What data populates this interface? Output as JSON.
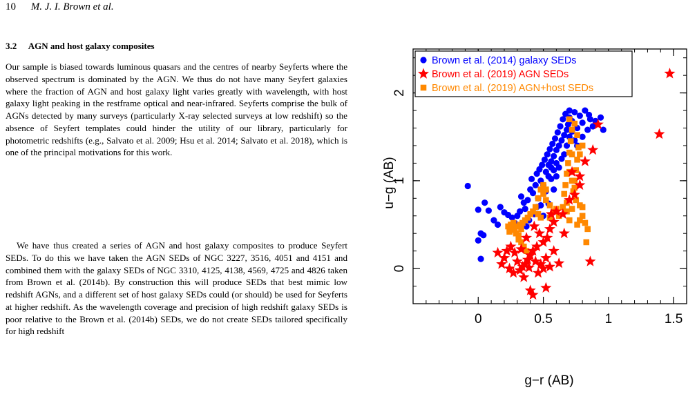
{
  "header": {
    "page_number": "10",
    "authors": "M. J. I. Brown et al."
  },
  "section": {
    "number": "3.2",
    "title": "AGN and host galaxy composites"
  },
  "paragraphs": [
    "Our sample is biased towards luminous quasars and the centres of nearby Seyferts where the observed spectrum is dominated by the AGN. We thus do not have many Seyfert galaxies where the fraction of AGN and host galaxy light varies greatly with wavelength, with host galaxy light peaking in the restframe optical and near-infrared. Seyferts comprise the bulk of AGNs detected by many surveys (particularly X-ray selected surveys at low redshift) so the absence of Seyfert templates could hinder the utility of our library, particularly for photometric redshifts (e.g., Salvato et al. 2009; Hsu et al. 2014; Salvato et al. 2018), which is one of the principal motivations for this work.",
    "We have thus created a series of AGN and host galaxy composites to produce Seyfert SEDs. To do this we have taken the AGN SEDs of NGC 3227, 3516, 4051 and 4151 and combined them with the galaxy SEDs of NGC 3310, 4125, 4138, 4569, 4725 and 4826 taken from Brown et al. (2014b). By construction this will produce SEDs that best mimic low redshift AGNs, and a different set of host galaxy SEDs could (or should) be used for Seyferts at higher redshift. As the wavelength coverage and precision of high redshift galaxy SEDs is poor relative to the Brown et al. (2014b) SEDs, we do not create SEDs tailored specifically for high redshift"
  ],
  "chart_data": {
    "type": "scatter",
    "xlabel": "g−r (AB)",
    "ylabel": "u−g (AB)",
    "xlim": [
      -0.5,
      1.6
    ],
    "ylim": [
      -0.4,
      2.5
    ],
    "xticks": [
      "0",
      "0.5",
      "1",
      "1.5"
    ],
    "yticks": [
      "0",
      "1",
      "2"
    ],
    "legend_position": "top-left",
    "series": [
      {
        "name": "Brown et al. (2014) galaxy SEDs",
        "marker": "circle",
        "color": "#0000ff",
        "points": [
          [
            -0.08,
            0.94
          ],
          [
            0.0,
            0.67
          ],
          [
            0.05,
            0.75
          ],
          [
            0.08,
            0.66
          ],
          [
            0.0,
            0.32
          ],
          [
            0.02,
            0.4
          ],
          [
            0.04,
            0.38
          ],
          [
            0.02,
            0.11
          ],
          [
            0.12,
            0.55
          ],
          [
            0.15,
            0.5
          ],
          [
            0.17,
            0.7
          ],
          [
            0.2,
            0.64
          ],
          [
            0.23,
            0.61
          ],
          [
            0.26,
            0.58
          ],
          [
            0.28,
            0.52
          ],
          [
            0.3,
            0.6
          ],
          [
            0.32,
            0.65
          ],
          [
            0.33,
            0.82
          ],
          [
            0.35,
            0.75
          ],
          [
            0.36,
            0.68
          ],
          [
            0.38,
            0.78
          ],
          [
            0.4,
            0.9
          ],
          [
            0.41,
            1.02
          ],
          [
            0.42,
            0.86
          ],
          [
            0.44,
            0.95
          ],
          [
            0.45,
            1.08
          ],
          [
            0.46,
            0.8
          ],
          [
            0.47,
            1.13
          ],
          [
            0.48,
            1.0
          ],
          [
            0.49,
            1.18
          ],
          [
            0.5,
            0.95
          ],
          [
            0.51,
            1.24
          ],
          [
            0.52,
            1.1
          ],
          [
            0.53,
            1.3
          ],
          [
            0.54,
            1.18
          ],
          [
            0.55,
            1.36
          ],
          [
            0.56,
            1.22
          ],
          [
            0.57,
            1.42
          ],
          [
            0.58,
            1.28
          ],
          [
            0.59,
            1.48
          ],
          [
            0.6,
            1.35
          ],
          [
            0.61,
            1.55
          ],
          [
            0.62,
            1.4
          ],
          [
            0.63,
            1.62
          ],
          [
            0.64,
            1.46
          ],
          [
            0.65,
            1.7
          ],
          [
            0.66,
            1.52
          ],
          [
            0.67,
            1.76
          ],
          [
            0.68,
            1.58
          ],
          [
            0.69,
            1.64
          ],
          [
            0.7,
            1.72
          ],
          [
            0.72,
            1.68
          ],
          [
            0.74,
            1.78
          ],
          [
            0.76,
            1.6
          ],
          [
            0.78,
            1.74
          ],
          [
            0.8,
            1.66
          ],
          [
            0.82,
            1.8
          ],
          [
            0.84,
            1.58
          ],
          [
            0.86,
            1.7
          ],
          [
            0.88,
            1.62
          ],
          [
            0.9,
            1.68
          ],
          [
            0.94,
            1.72
          ],
          [
            0.96,
            1.58
          ],
          [
            0.52,
            0.88
          ],
          [
            0.54,
            0.74
          ],
          [
            0.56,
            1.02
          ],
          [
            0.58,
            0.9
          ],
          [
            0.6,
            1.05
          ],
          [
            0.62,
            1.15
          ],
          [
            0.45,
            0.7
          ],
          [
            0.43,
            0.62
          ],
          [
            0.39,
            0.55
          ],
          [
            0.37,
            0.48
          ],
          [
            0.5,
            0.6
          ],
          [
            0.48,
            0.72
          ],
          [
            0.66,
            1.3
          ],
          [
            0.68,
            1.4
          ],
          [
            0.7,
            1.5
          ],
          [
            0.72,
            1.56
          ],
          [
            0.74,
            1.46
          ],
          [
            0.76,
            1.4
          ],
          [
            0.64,
            1.25
          ],
          [
            0.6,
            1.2
          ],
          [
            0.58,
            1.12
          ],
          [
            0.56,
            1.15
          ],
          [
            0.54,
            1.05
          ],
          [
            0.7,
            1.8
          ],
          [
            0.8,
            1.5
          ],
          [
            0.85,
            1.75
          ]
        ]
      },
      {
        "name": "Brown et al. (2019) AGN SEDs",
        "marker": "star",
        "color": "#ff0000",
        "points": [
          [
            1.47,
            2.22
          ],
          [
            1.39,
            1.53
          ],
          [
            0.92,
            1.64
          ],
          [
            0.88,
            1.35
          ],
          [
            0.82,
            1.22
          ],
          [
            0.78,
            1.05
          ],
          [
            0.74,
            0.84
          ],
          [
            0.7,
            0.78
          ],
          [
            0.78,
            0.95
          ],
          [
            0.72,
            1.1
          ],
          [
            0.86,
            0.08
          ],
          [
            0.65,
            0.62
          ],
          [
            0.6,
            0.65
          ],
          [
            0.58,
            0.53
          ],
          [
            0.55,
            0.45
          ],
          [
            0.53,
            0.35
          ],
          [
            0.5,
            0.3
          ],
          [
            0.47,
            0.4
          ],
          [
            0.45,
            0.25
          ],
          [
            0.42,
            0.2
          ],
          [
            0.4,
            0.15
          ],
          [
            0.38,
            0.1
          ],
          [
            0.36,
            0.05
          ],
          [
            0.34,
            0.02
          ],
          [
            0.32,
            -0.02
          ],
          [
            0.3,
            0.08
          ],
          [
            0.28,
            0.18
          ],
          [
            0.25,
            0.25
          ],
          [
            0.22,
            0.2
          ],
          [
            0.2,
            0.12
          ],
          [
            0.18,
            0.05
          ],
          [
            0.15,
            0.18
          ],
          [
            0.27,
            -0.05
          ],
          [
            0.35,
            -0.1
          ],
          [
            0.4,
            -0.25
          ],
          [
            0.42,
            -0.3
          ],
          [
            0.52,
            -0.22
          ],
          [
            0.46,
            -0.05
          ],
          [
            0.55,
            0.02
          ],
          [
            0.48,
            0.05
          ],
          [
            0.44,
            0.08
          ],
          [
            0.39,
            0.01
          ],
          [
            0.62,
            0.06
          ],
          [
            0.58,
            0.2
          ],
          [
            0.52,
            0.12
          ],
          [
            0.66,
            0.4
          ],
          [
            0.56,
            0.62
          ],
          [
            0.5,
            0.0
          ],
          [
            0.37,
            0.35
          ],
          [
            0.43,
            0.48
          ],
          [
            0.24,
            0.0
          ],
          [
            0.33,
            0.22
          ]
        ]
      },
      {
        "name": "Brown et al. (2019) AGN+host SEDs",
        "marker": "square",
        "color": "#ff8800",
        "points": [
          [
            0.7,
            1.7
          ],
          [
            0.72,
            1.58
          ],
          [
            0.71,
            1.45
          ],
          [
            0.7,
            1.32
          ],
          [
            0.69,
            1.2
          ],
          [
            0.68,
            1.08
          ],
          [
            0.67,
            0.95
          ],
          [
            0.66,
            0.85
          ],
          [
            0.68,
            0.75
          ],
          [
            0.72,
            0.68
          ],
          [
            0.74,
            1.65
          ],
          [
            0.76,
            1.52
          ],
          [
            0.77,
            1.38
          ],
          [
            0.76,
            1.24
          ],
          [
            0.75,
            1.12
          ],
          [
            0.74,
            1.0
          ],
          [
            0.73,
            0.88
          ],
          [
            0.75,
            0.78
          ],
          [
            0.78,
            0.72
          ],
          [
            0.8,
            0.7
          ],
          [
            0.8,
            0.6
          ],
          [
            0.78,
            0.55
          ],
          [
            0.76,
            0.5
          ],
          [
            0.7,
            0.55
          ],
          [
            0.68,
            0.65
          ],
          [
            0.65,
            0.7
          ],
          [
            0.6,
            0.68
          ],
          [
            0.55,
            0.72
          ],
          [
            0.52,
            0.78
          ],
          [
            0.5,
            0.85
          ],
          [
            0.48,
            0.9
          ],
          [
            0.46,
            0.8
          ],
          [
            0.44,
            0.7
          ],
          [
            0.42,
            0.65
          ],
          [
            0.4,
            0.62
          ],
          [
            0.38,
            0.58
          ],
          [
            0.36,
            0.55
          ],
          [
            0.34,
            0.52
          ],
          [
            0.32,
            0.5
          ],
          [
            0.3,
            0.48
          ],
          [
            0.28,
            0.46
          ],
          [
            0.26,
            0.44
          ],
          [
            0.24,
            0.42
          ],
          [
            0.23,
            0.48
          ],
          [
            0.25,
            0.5
          ],
          [
            0.27,
            0.52
          ],
          [
            0.29,
            0.4
          ],
          [
            0.31,
            0.38
          ],
          [
            0.33,
            0.45
          ],
          [
            0.35,
            0.25
          ],
          [
            0.37,
            0.2
          ],
          [
            0.33,
            0.3
          ],
          [
            0.31,
            0.33
          ],
          [
            0.83,
            0.3
          ],
          [
            0.84,
            0.45
          ],
          [
            0.82,
            0.52
          ],
          [
            0.62,
            0.6
          ],
          [
            0.58,
            0.65
          ],
          [
            0.55,
            0.58
          ],
          [
            0.48,
            0.58
          ],
          [
            0.46,
            0.62
          ],
          [
            0.52,
            0.9
          ],
          [
            0.5,
            0.95
          ],
          [
            0.72,
            1.3
          ],
          [
            0.7,
            1.1
          ],
          [
            0.72,
            1.0
          ],
          [
            0.74,
            0.92
          ],
          [
            0.8,
            1.4
          ],
          [
            0.78,
            1.3
          ]
        ]
      }
    ]
  }
}
